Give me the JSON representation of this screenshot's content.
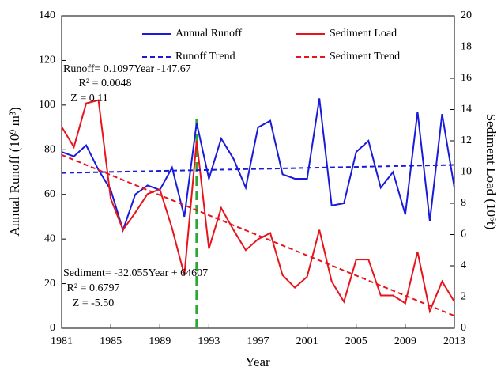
{
  "chart_data": {
    "type": "line",
    "x_label": "Year",
    "y_label": "Annual Runoff (10⁹ m³)",
    "y2_label": "Sediment Load (10⁶t)",
    "x": [
      1981,
      1982,
      1983,
      1984,
      1985,
      1986,
      1987,
      1988,
      1989,
      1990,
      1991,
      1992,
      1993,
      1994,
      1995,
      1996,
      1997,
      1998,
      1999,
      2000,
      2001,
      2002,
      2003,
      2004,
      2005,
      2006,
      2007,
      2008,
      2009,
      2010,
      2011,
      2012,
      2013
    ],
    "xlim": [
      1981,
      2013
    ],
    "xticks": [
      1981,
      1985,
      1989,
      1993,
      1997,
      2001,
      2005,
      2009,
      2013
    ],
    "ylim": [
      0,
      140
    ],
    "yticks": [
      0,
      20,
      40,
      60,
      80,
      100,
      120,
      140
    ],
    "y2lim": [
      0,
      20
    ],
    "y2ticks": [
      0,
      2,
      4,
      6,
      8,
      10,
      12,
      14,
      16,
      18,
      20
    ],
    "series": [
      {
        "name": "Annual Runoff",
        "color": "#1a1adb",
        "dash": false,
        "values": [
          79,
          77,
          82,
          71,
          62,
          44,
          60,
          64,
          62,
          72,
          50,
          92,
          67,
          85,
          76,
          63,
          90,
          93,
          69,
          67,
          67,
          103,
          55,
          56,
          79,
          84,
          63,
          70,
          51,
          97,
          48,
          96,
          63
        ]
      },
      {
        "name": "Sediment Load",
        "color": "#e8141c",
        "dash": false,
        "axis": "y2",
        "values": [
          12.9,
          11.6,
          14.4,
          14.6,
          8.3,
          6.3,
          7.4,
          8.6,
          8.9,
          6.4,
          3.4,
          12.0,
          5.1,
          7.7,
          6.3,
          5.0,
          5.7,
          6.1,
          3.4,
          2.6,
          3.3,
          6.3,
          3.0,
          1.7,
          4.4,
          4.4,
          2.1,
          2.1,
          1.6,
          4.9,
          1.1,
          3.0,
          1.7
        ]
      },
      {
        "name": "Runoff Trend",
        "color": "#1a1adb",
        "dash": true,
        "x": [
          1981,
          2013
        ],
        "values": [
          69.6,
          73.2
        ]
      },
      {
        "name": "Sediment Trend",
        "color": "#e8141c",
        "dash": true,
        "axis": "y2",
        "x": [
          1981,
          2013
        ],
        "values": [
          11.1,
          0.8
        ]
      }
    ],
    "vertical_line": {
      "x": 1992,
      "y": [
        0,
        95
      ],
      "color": "#2aa832"
    },
    "annotations": [
      "Runoff= 0.1097Year -147.67",
      "R² = 0.0048",
      "Z = 0.11",
      "Sediment= -32.055Year + 64607",
      "R² = 0.6797",
      "Z = -5.50"
    ]
  }
}
